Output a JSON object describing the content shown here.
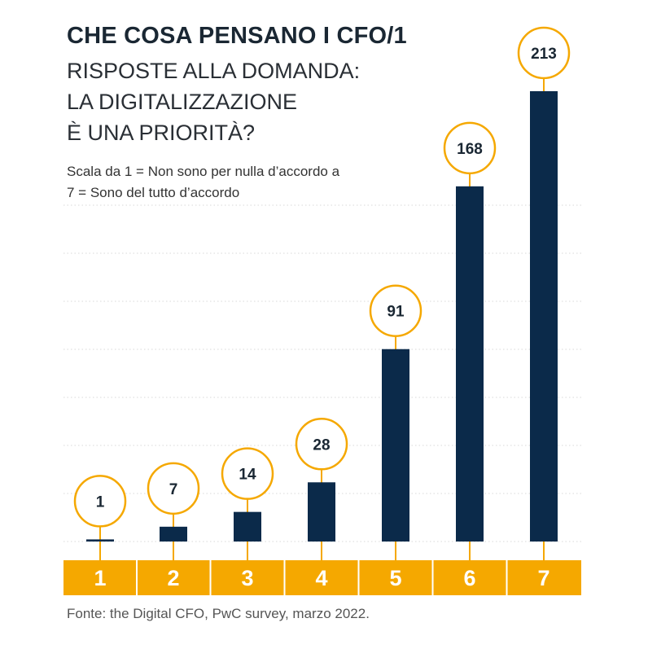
{
  "header": {
    "title": "CHE COSA PENSANO I CFO/1",
    "subtitle": "RISPOSTE ALLA DOMANDA:\nLA DIGITALIZZAZIONE\nÈ UNA PRIORITÀ?",
    "scale_note": "Scala da 1 = Non sono per nulla d’accordo a\n7 = Sono del tutto d’accordo"
  },
  "footer": {
    "source": "Fonte: the Digital CFO, PwC survey, marzo 2022."
  },
  "colors": {
    "bar": "#0b2a4a",
    "accent": "#f5a800",
    "grid": "#d8d8d8",
    "circle_fill": "#ffffff",
    "axis_text": "#ffffff",
    "value_text": "#1a2733"
  },
  "chart_data": {
    "type": "bar",
    "categories": [
      "1",
      "2",
      "3",
      "4",
      "5",
      "6",
      "7"
    ],
    "values": [
      1,
      7,
      14,
      28,
      91,
      168,
      213
    ],
    "title": "",
    "xlabel": "",
    "ylabel": "",
    "ylim": [
      0,
      213
    ],
    "grid": true,
    "data_labels": true
  }
}
